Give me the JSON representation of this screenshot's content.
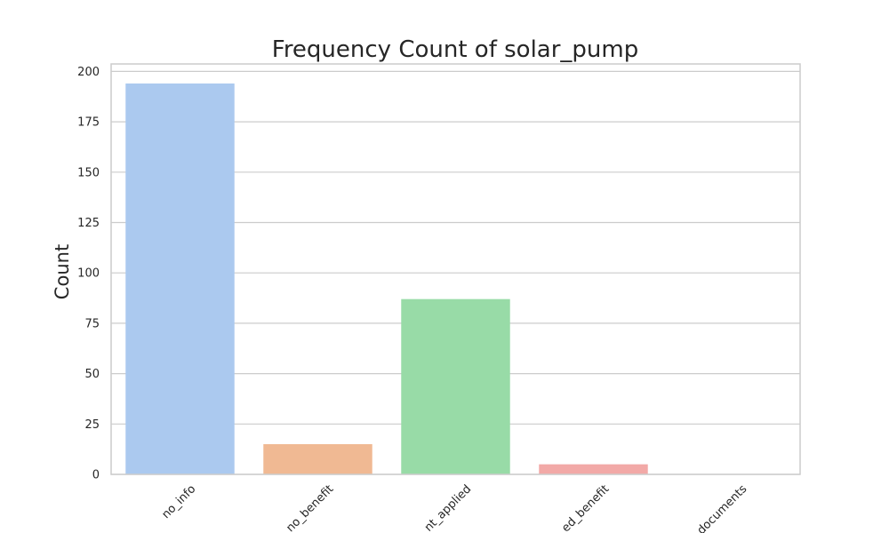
{
  "chart_data": {
    "type": "bar",
    "title": "Frequency Count of solar_pump",
    "xlabel": "",
    "ylabel": "Count",
    "categories": [
      "no_info",
      "no_benefit",
      "not_applied",
      "applied_benefit",
      "no_documents"
    ],
    "tick_labels": [
      "no_info",
      "no_benefit",
      "nt_applied",
      "ed_benefit",
      "documents"
    ],
    "values": [
      194,
      15,
      87,
      5,
      0
    ],
    "colors": [
      "#abc9ef",
      "#f0b993",
      "#98dba7",
      "#f2a9a7",
      "#d2c3ee"
    ],
    "yticks": [
      0,
      25,
      50,
      75,
      100,
      125,
      150,
      175,
      200
    ],
    "ylim": [
      0,
      203.7
    ],
    "grid": true,
    "legend": false
  }
}
